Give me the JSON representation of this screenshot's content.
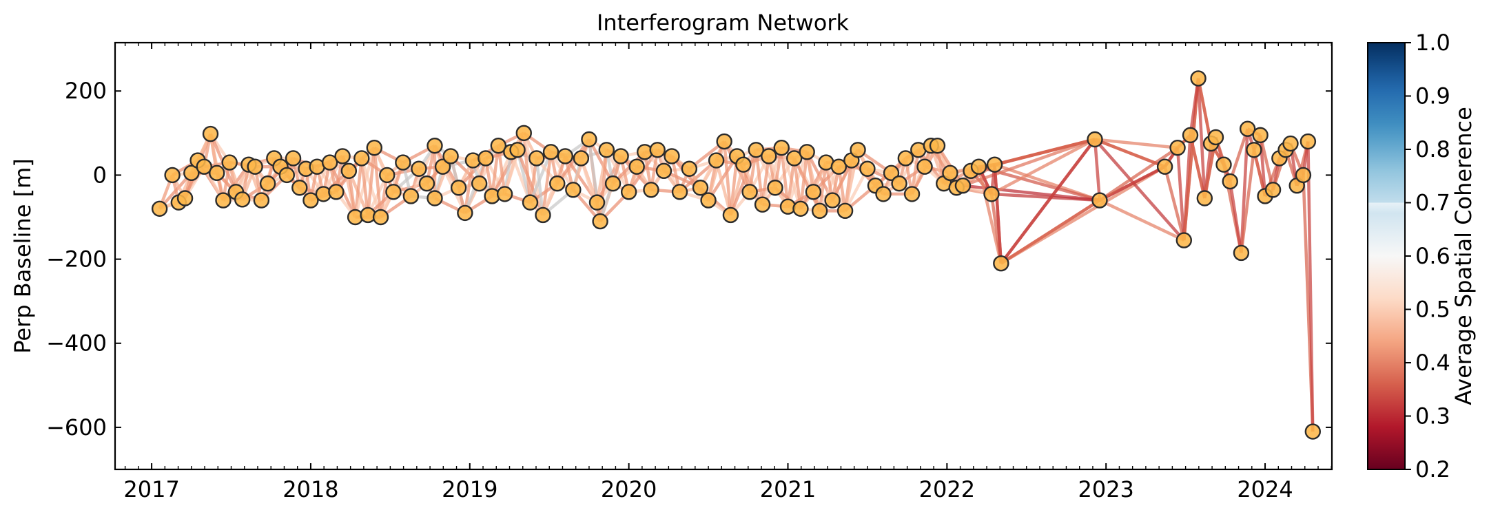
{
  "chart_data": {
    "type": "scatter",
    "title": "Interferogram Network",
    "xlabel": "",
    "ylabel": "Perp Baseline [m]",
    "xlim": [
      2016.77,
      2024.42
    ],
    "ylim": [
      -700,
      315
    ],
    "x_ticks": [
      "2017",
      "2018",
      "2019",
      "2020",
      "2021",
      "2022",
      "2023",
      "2024"
    ],
    "y_ticks": [
      200,
      0,
      -200,
      -400,
      -600
    ],
    "y_tick_labels": [
      "200",
      "0",
      "−200",
      "−400",
      "−600"
    ],
    "colorbar": {
      "label": "Average Spatial Coherence",
      "range": [
        0.2,
        1.0
      ],
      "ticks": [
        "1.0",
        "0.9",
        "0.8",
        "0.7",
        "0.6",
        "0.5",
        "0.4",
        "0.3",
        "0.2"
      ],
      "colormap": "RdBu",
      "display_max": 0.7
    },
    "node_style": {
      "fill": "#fdb74a",
      "stroke": "#2b2b2b"
    },
    "acquisitions": [
      {
        "t": 2017.05,
        "bperp": -80
      },
      {
        "t": 2017.13,
        "bperp": 0
      },
      {
        "t": 2017.17,
        "bperp": -65
      },
      {
        "t": 2017.21,
        "bperp": -55
      },
      {
        "t": 2017.25,
        "bperp": 5
      },
      {
        "t": 2017.29,
        "bperp": 35
      },
      {
        "t": 2017.33,
        "bperp": 20
      },
      {
        "t": 2017.37,
        "bperp": 98
      },
      {
        "t": 2017.41,
        "bperp": 5
      },
      {
        "t": 2017.45,
        "bperp": -60
      },
      {
        "t": 2017.49,
        "bperp": 30
      },
      {
        "t": 2017.53,
        "bperp": -40
      },
      {
        "t": 2017.57,
        "bperp": -58
      },
      {
        "t": 2017.61,
        "bperp": 25
      },
      {
        "t": 2017.65,
        "bperp": 20
      },
      {
        "t": 2017.69,
        "bperp": -60
      },
      {
        "t": 2017.73,
        "bperp": -20
      },
      {
        "t": 2017.77,
        "bperp": 40
      },
      {
        "t": 2017.81,
        "bperp": 20
      },
      {
        "t": 2017.85,
        "bperp": 0
      },
      {
        "t": 2017.89,
        "bperp": 40
      },
      {
        "t": 2017.93,
        "bperp": -30
      },
      {
        "t": 2017.97,
        "bperp": 15
      },
      {
        "t": 2018.0,
        "bperp": -60
      },
      {
        "t": 2018.04,
        "bperp": 20
      },
      {
        "t": 2018.08,
        "bperp": -45
      },
      {
        "t": 2018.12,
        "bperp": 30
      },
      {
        "t": 2018.16,
        "bperp": -40
      },
      {
        "t": 2018.2,
        "bperp": 45
      },
      {
        "t": 2018.24,
        "bperp": 10
      },
      {
        "t": 2018.28,
        "bperp": -100
      },
      {
        "t": 2018.32,
        "bperp": 40
      },
      {
        "t": 2018.36,
        "bperp": -95
      },
      {
        "t": 2018.4,
        "bperp": 65
      },
      {
        "t": 2018.44,
        "bperp": -100
      },
      {
        "t": 2018.48,
        "bperp": 0
      },
      {
        "t": 2018.52,
        "bperp": -40
      },
      {
        "t": 2018.58,
        "bperp": 30
      },
      {
        "t": 2018.63,
        "bperp": -50
      },
      {
        "t": 2018.68,
        "bperp": 15
      },
      {
        "t": 2018.73,
        "bperp": -20
      },
      {
        "t": 2018.78,
        "bperp": 70
      },
      {
        "t": 2018.78,
        "bperp": -55
      },
      {
        "t": 2018.83,
        "bperp": 20
      },
      {
        "t": 2018.88,
        "bperp": 45
      },
      {
        "t": 2018.93,
        "bperp": -30
      },
      {
        "t": 2018.97,
        "bperp": -90
      },
      {
        "t": 2019.02,
        "bperp": 35
      },
      {
        "t": 2019.06,
        "bperp": -20
      },
      {
        "t": 2019.1,
        "bperp": 40
      },
      {
        "t": 2019.14,
        "bperp": -50
      },
      {
        "t": 2019.18,
        "bperp": 70
      },
      {
        "t": 2019.22,
        "bperp": -45
      },
      {
        "t": 2019.26,
        "bperp": 55
      },
      {
        "t": 2019.3,
        "bperp": 60
      },
      {
        "t": 2019.34,
        "bperp": 100
      },
      {
        "t": 2019.38,
        "bperp": -65
      },
      {
        "t": 2019.42,
        "bperp": 40
      },
      {
        "t": 2019.46,
        "bperp": -95
      },
      {
        "t": 2019.51,
        "bperp": 55
      },
      {
        "t": 2019.55,
        "bperp": -20
      },
      {
        "t": 2019.6,
        "bperp": 45
      },
      {
        "t": 2019.65,
        "bperp": -35
      },
      {
        "t": 2019.7,
        "bperp": 40
      },
      {
        "t": 2019.75,
        "bperp": 85
      },
      {
        "t": 2019.8,
        "bperp": -65
      },
      {
        "t": 2019.82,
        "bperp": -110
      },
      {
        "t": 2019.86,
        "bperp": 60
      },
      {
        "t": 2019.9,
        "bperp": -20
      },
      {
        "t": 2019.95,
        "bperp": 45
      },
      {
        "t": 2020.0,
        "bperp": -40
      },
      {
        "t": 2020.05,
        "bperp": 20
      },
      {
        "t": 2020.1,
        "bperp": 55
      },
      {
        "t": 2020.14,
        "bperp": -35
      },
      {
        "t": 2020.18,
        "bperp": 60
      },
      {
        "t": 2020.22,
        "bperp": 10
      },
      {
        "t": 2020.27,
        "bperp": 45
      },
      {
        "t": 2020.32,
        "bperp": -40
      },
      {
        "t": 2020.38,
        "bperp": 15
      },
      {
        "t": 2020.45,
        "bperp": -30
      },
      {
        "t": 2020.5,
        "bperp": -60
      },
      {
        "t": 2020.55,
        "bperp": 35
      },
      {
        "t": 2020.6,
        "bperp": 80
      },
      {
        "t": 2020.64,
        "bperp": -95
      },
      {
        "t": 2020.68,
        "bperp": 45
      },
      {
        "t": 2020.72,
        "bperp": 25
      },
      {
        "t": 2020.76,
        "bperp": -40
      },
      {
        "t": 2020.8,
        "bperp": 60
      },
      {
        "t": 2020.84,
        "bperp": -70
      },
      {
        "t": 2020.88,
        "bperp": 45
      },
      {
        "t": 2020.92,
        "bperp": -30
      },
      {
        "t": 2020.96,
        "bperp": 65
      },
      {
        "t": 2021.0,
        "bperp": -75
      },
      {
        "t": 2021.04,
        "bperp": 40
      },
      {
        "t": 2021.08,
        "bperp": -80
      },
      {
        "t": 2021.12,
        "bperp": 55
      },
      {
        "t": 2021.16,
        "bperp": -40
      },
      {
        "t": 2021.2,
        "bperp": -85
      },
      {
        "t": 2021.24,
        "bperp": 30
      },
      {
        "t": 2021.28,
        "bperp": -60
      },
      {
        "t": 2021.32,
        "bperp": 20
      },
      {
        "t": 2021.36,
        "bperp": -85
      },
      {
        "t": 2021.4,
        "bperp": 35
      },
      {
        "t": 2021.44,
        "bperp": 60
      },
      {
        "t": 2021.5,
        "bperp": 15
      },
      {
        "t": 2021.55,
        "bperp": -25
      },
      {
        "t": 2021.6,
        "bperp": -45
      },
      {
        "t": 2021.65,
        "bperp": 5
      },
      {
        "t": 2021.7,
        "bperp": -20
      },
      {
        "t": 2021.74,
        "bperp": 40
      },
      {
        "t": 2021.78,
        "bperp": -45
      },
      {
        "t": 2021.82,
        "bperp": 60
      },
      {
        "t": 2021.86,
        "bperp": 20
      },
      {
        "t": 2021.9,
        "bperp": 70
      },
      {
        "t": 2021.94,
        "bperp": 70
      },
      {
        "t": 2021.98,
        "bperp": -20
      },
      {
        "t": 2022.02,
        "bperp": 5
      },
      {
        "t": 2022.06,
        "bperp": -30
      },
      {
        "t": 2022.1,
        "bperp": -25
      },
      {
        "t": 2022.15,
        "bperp": 10
      },
      {
        "t": 2022.2,
        "bperp": 20
      },
      {
        "t": 2022.28,
        "bperp": -45
      },
      {
        "t": 2022.3,
        "bperp": 25
      },
      {
        "t": 2022.34,
        "bperp": -210
      },
      {
        "t": 2022.93,
        "bperp": 85
      },
      {
        "t": 2022.96,
        "bperp": -60
      },
      {
        "t": 2023.37,
        "bperp": 20
      },
      {
        "t": 2023.45,
        "bperp": 65
      },
      {
        "t": 2023.49,
        "bperp": -155
      },
      {
        "t": 2023.53,
        "bperp": 95
      },
      {
        "t": 2023.58,
        "bperp": 230
      },
      {
        "t": 2023.62,
        "bperp": -55
      },
      {
        "t": 2023.66,
        "bperp": 75
      },
      {
        "t": 2023.69,
        "bperp": 90
      },
      {
        "t": 2023.74,
        "bperp": 25
      },
      {
        "t": 2023.78,
        "bperp": -15
      },
      {
        "t": 2023.85,
        "bperp": -185
      },
      {
        "t": 2023.89,
        "bperp": 110
      },
      {
        "t": 2023.93,
        "bperp": 60
      },
      {
        "t": 2023.97,
        "bperp": 95
      },
      {
        "t": 2024.0,
        "bperp": -50
      },
      {
        "t": 2024.05,
        "bperp": -35
      },
      {
        "t": 2024.09,
        "bperp": 40
      },
      {
        "t": 2024.13,
        "bperp": 60
      },
      {
        "t": 2024.16,
        "bperp": 75
      },
      {
        "t": 2024.2,
        "bperp": -25
      },
      {
        "t": 2024.24,
        "bperp": 0
      },
      {
        "t": 2024.27,
        "bperp": 80
      },
      {
        "t": 2024.3,
        "bperp": -610
      }
    ],
    "pair_links": {
      "neighbors": 4,
      "coherence_early": 0.45,
      "coherence_late": 0.35,
      "gray_span": [
        2018.5,
        2019.9
      ],
      "extra_pairs": [
        [
          122,
          123
        ],
        [
          122,
          125
        ],
        [
          123,
          125
        ],
        [
          121,
          125
        ],
        [
          120,
          125
        ],
        [
          118,
          125
        ],
        [
          121,
          124
        ],
        [
          118,
          124
        ],
        [
          119,
          124
        ],
        [
          120,
          123
        ],
        [
          123,
          126
        ],
        [
          124,
          126
        ],
        [
          124,
          128
        ],
        [
          125,
          128
        ],
        [
          125,
          126
        ],
        [
          124,
          127
        ],
        [
          123,
          124
        ],
        [
          122,
          124
        ],
        [
          126,
          127
        ],
        [
          127,
          129
        ],
        [
          128,
          130
        ],
        [
          129,
          131
        ],
        [
          131,
          133
        ],
        [
          132,
          134
        ],
        [
          130,
          132
        ],
        [
          137,
          139
        ],
        [
          138,
          140
        ],
        [
          149,
          150
        ],
        [
          148,
          150
        ],
        [
          147,
          150
        ]
      ]
    }
  }
}
